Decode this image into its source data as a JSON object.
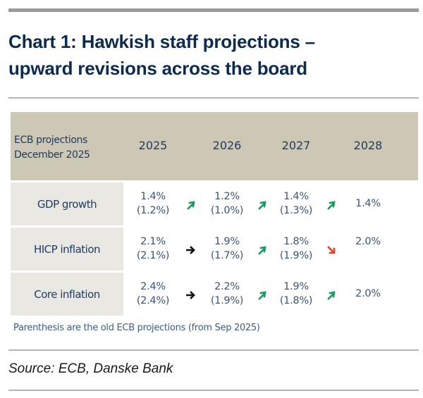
{
  "title": {
    "line1": "Chart 1: Hawkish staff projections –",
    "line2": "upward revisions across the board"
  },
  "table": {
    "header_label_line1": "ECB projections",
    "header_label_line2": "December 2025",
    "years": [
      "2025",
      "2026",
      "2027",
      "2028"
    ],
    "rows": [
      {
        "label": "GDP growth",
        "cells": [
          {
            "new": "1.4%",
            "old": "(1.2%)"
          },
          {
            "new": "1.2%",
            "old": "(1.0%)"
          },
          {
            "new": "1.4%",
            "old": "(1.3%)"
          },
          {
            "new": "1.4%",
            "old": ""
          }
        ],
        "arrows": [
          "up",
          "up",
          "up"
        ]
      },
      {
        "label": "HICP inflation",
        "cells": [
          {
            "new": "2.1%",
            "old": "(2.1%)"
          },
          {
            "new": "1.9%",
            "old": "(1.7%)"
          },
          {
            "new": "1.8%",
            "old": "(1.9%)"
          },
          {
            "new": "2.0%",
            "old": ""
          }
        ],
        "arrows": [
          "flat",
          "up",
          "down"
        ]
      },
      {
        "label": "Core inflation",
        "cells": [
          {
            "new": "2.4%",
            "old": "(2.4%)"
          },
          {
            "new": "2.2%",
            "old": "(1.9%)"
          },
          {
            "new": "1.9%",
            "old": "(1.8%)"
          },
          {
            "new": "2.0%",
            "old": ""
          }
        ],
        "arrows": [
          "flat",
          "up",
          "up"
        ]
      }
    ],
    "note": "Parenthesis are the old ECB projections (from Sep 2025)"
  },
  "source": "Source: ECB, Danske Bank",
  "colors": {
    "title": "#0c2b4e",
    "header_bg": "#cdc7b6",
    "row_label_bg": "#e9e8e3",
    "arrow_up": "#1a9a5c",
    "arrow_down": "#e0402a",
    "arrow_flat": "#111111"
  }
}
